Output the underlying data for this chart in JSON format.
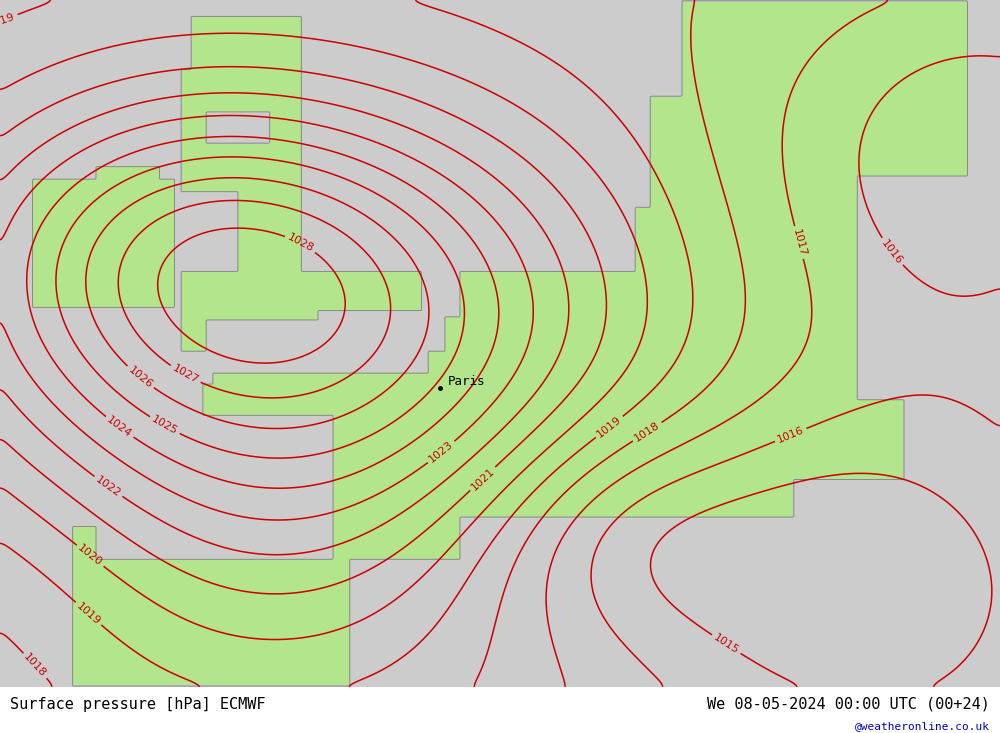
{
  "title_left": "Surface pressure [hPa] ECMWF",
  "title_right": "We 08-05-2024 00:00 UTC (00+24)",
  "watermark": "@weatheronline.co.uk",
  "ocean_color": [
    0.8,
    0.8,
    0.8
  ],
  "land_color": [
    0.7,
    0.9,
    0.55
  ],
  "coast_color": "#888888",
  "isobar_color": "#cc0000",
  "paris_label": "Paris",
  "font_size_labels": 8,
  "font_size_title": 11,
  "font_size_watermark": 8,
  "isobar_linewidth": 1.1,
  "coast_linewidth": 0.7,
  "lon_min": -11.5,
  "lon_max": 20.0,
  "lat_min": 39.5,
  "lat_max": 61.0
}
